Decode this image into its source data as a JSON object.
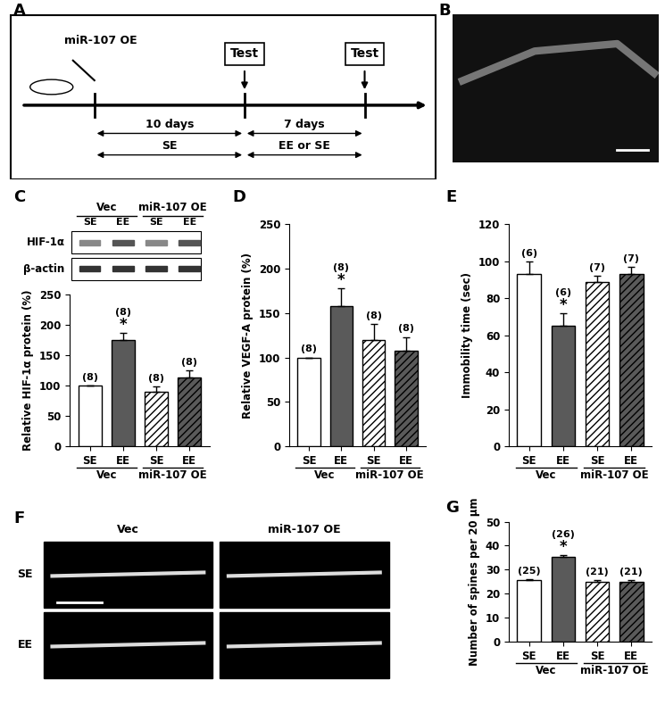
{
  "panel_labels": [
    "A",
    "B",
    "C",
    "D",
    "E",
    "F",
    "G"
  ],
  "diagram": {
    "injection": "miR-107 OE",
    "tests": [
      "Test",
      "Test"
    ],
    "intervals": [
      {
        "duration": "10 days",
        "housing": "SE"
      },
      {
        "duration": "7 days",
        "housing": "EE or SE"
      }
    ]
  },
  "blot": {
    "groups": [
      "Vec",
      "miR-107 OE"
    ],
    "conditions": [
      "SE",
      "EE",
      "SE",
      "EE"
    ],
    "bands": [
      "HIF-1α",
      "β-actin"
    ]
  },
  "image_F": {
    "columns": [
      "Vec",
      "miR-107 OE"
    ],
    "rows": [
      "SE",
      "EE"
    ]
  },
  "chart_data": [
    {
      "type": "bar",
      "ylabel": "Relative HIF-1α protein (%)",
      "categories": [
        "SE",
        "EE",
        "SE",
        "EE"
      ],
      "groups": [
        "Vec",
        "miR-107 OE"
      ],
      "values": [
        100,
        175,
        90,
        113
      ],
      "errors": [
        0,
        12,
        8,
        12
      ],
      "n_labels": [
        "(8)",
        "(8)",
        "(8)",
        "(8)"
      ],
      "significance": [
        null,
        "*",
        null,
        null
      ],
      "colors": [
        "#ffffff",
        "#5a5a5a",
        "#ffffff",
        "#5a5a5a"
      ],
      "ylim": [
        0,
        250
      ],
      "yticks": [
        0,
        50,
        100,
        150,
        200,
        250
      ]
    },
    {
      "type": "bar",
      "ylabel": "Relative VEGF-A protein (%)",
      "categories": [
        "SE",
        "EE",
        "SE",
        "EE"
      ],
      "groups": [
        "Vec",
        "miR-107 OE"
      ],
      "values": [
        100,
        158,
        120,
        108
      ],
      "errors": [
        0,
        20,
        18,
        15
      ],
      "n_labels": [
        "(8)",
        "(8)",
        "(8)",
        "(8)"
      ],
      "significance": [
        null,
        "*",
        null,
        null
      ],
      "colors": [
        "#ffffff",
        "#5a5a5a",
        "#ffffff",
        "#5a5a5a"
      ],
      "ylim": [
        0,
        250
      ],
      "yticks": [
        0,
        50,
        100,
        150,
        200,
        250
      ]
    },
    {
      "type": "bar",
      "ylabel": "Immobility time (sec)",
      "categories": [
        "SE",
        "EE",
        "SE",
        "EE"
      ],
      "groups": [
        "Vec",
        "miR-107 OE"
      ],
      "values": [
        93,
        65,
        89,
        93
      ],
      "errors": [
        7,
        7,
        3,
        4
      ],
      "n_labels": [
        "(6)",
        "(6)",
        "(7)",
        "(7)"
      ],
      "significance": [
        null,
        "*",
        null,
        null
      ],
      "colors": [
        "#ffffff",
        "#5a5a5a",
        "#ffffff",
        "#5a5a5a"
      ],
      "ylim": [
        0,
        120
      ],
      "yticks": [
        0,
        20,
        40,
        60,
        80,
        100,
        120
      ]
    },
    {
      "type": "bar",
      "ylabel": "Number of spines per 20 μm",
      "categories": [
        "SE",
        "EE",
        "SE",
        "EE"
      ],
      "groups": [
        "Vec",
        "miR-107 OE"
      ],
      "values": [
        25.5,
        35.5,
        25,
        25
      ],
      "errors": [
        0.5,
        0.6,
        0.5,
        0.5
      ],
      "n_labels": [
        "(25)",
        "(26)",
        "(21)",
        "(21)"
      ],
      "significance": [
        null,
        "*",
        null,
        null
      ],
      "colors": [
        "#ffffff",
        "#5a5a5a",
        "#ffffff",
        "#5a5a5a"
      ],
      "ylim": [
        0,
        50
      ],
      "yticks": [
        0,
        10,
        20,
        30,
        40,
        50
      ]
    }
  ]
}
